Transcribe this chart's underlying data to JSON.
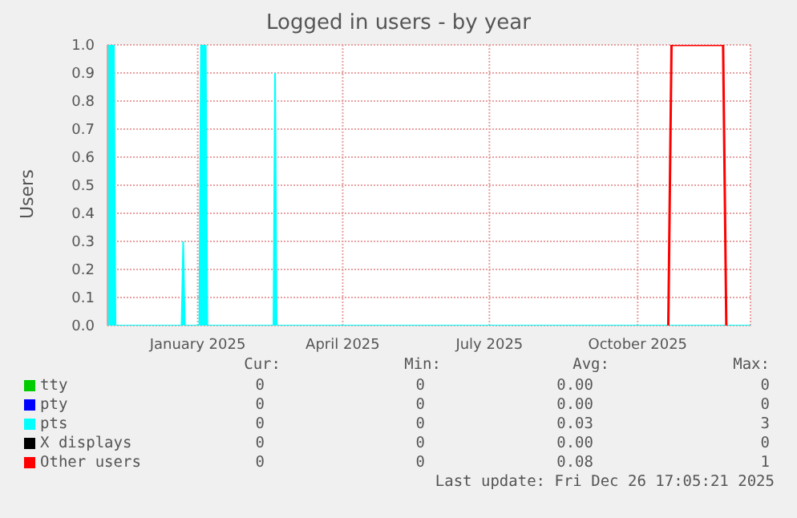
{
  "chart_data": {
    "type": "area",
    "title": "Logged in users - by year",
    "ylabel": "Users",
    "x": [
      "2024-11-06",
      "2024-11-10",
      "2024-11-11",
      "2024-12-22",
      "2024-12-23",
      "2024-12-24",
      "2025-01-02",
      "2025-01-03",
      "2025-01-06",
      "2025-01-07",
      "2025-02-17",
      "2025-02-18",
      "2025-02-19",
      "2025-10-20",
      "2025-10-22",
      "2025-11-23",
      "2025-11-25",
      "2025-12-10"
    ],
    "series": [
      {
        "name": "tty",
        "color": "#00cc00",
        "values": [
          null,
          null,
          null,
          null,
          null,
          null,
          null,
          null,
          null,
          null,
          null,
          null,
          null,
          null,
          null,
          null,
          null,
          null
        ]
      },
      {
        "name": "pty",
        "color": "#0000ff",
        "values": [
          null,
          null,
          null,
          null,
          null,
          null,
          null,
          null,
          null,
          null,
          null,
          null,
          null,
          null,
          null,
          null,
          null,
          null
        ]
      },
      {
        "name": "pts",
        "color": "#00ffff",
        "values": [
          1,
          1,
          0,
          0,
          0.3,
          0,
          0,
          1,
          1,
          0,
          0,
          0.9,
          0,
          0,
          0,
          0,
          0,
          0
        ]
      },
      {
        "name": "X displays",
        "color": "#000000",
        "values": [
          null,
          null,
          null,
          null,
          null,
          null,
          null,
          null,
          null,
          null,
          null,
          null,
          null,
          null,
          null,
          null,
          null,
          null
        ]
      },
      {
        "name": "Other users",
        "type": "line",
        "color": "#ff0000",
        "values": [
          null,
          null,
          null,
          null,
          null,
          null,
          null,
          null,
          null,
          null,
          null,
          null,
          null,
          0,
          1,
          1,
          0,
          null
        ]
      }
    ],
    "xlim": [
      "2024-11-06",
      "2025-12-10"
    ],
    "xticks": [
      {
        "value": "2025-01-01",
        "label": "January 2025"
      },
      {
        "value": "2025-04-01",
        "label": "April 2025"
      },
      {
        "value": "2025-07-01",
        "label": "July 2025"
      },
      {
        "value": "2025-10-01",
        "label": "October 2025"
      }
    ],
    "ylim": [
      0,
      1
    ],
    "yticks": [
      {
        "value": 0,
        "label": "0.0"
      },
      {
        "value": 0.1,
        "label": "0.1"
      },
      {
        "value": 0.2,
        "label": "0.2"
      },
      {
        "value": 0.3,
        "label": "0.3"
      },
      {
        "value": 0.4,
        "label": "0.4"
      },
      {
        "value": 0.5,
        "label": "0.5"
      },
      {
        "value": 0.6,
        "label": "0.6"
      },
      {
        "value": 0.7,
        "label": "0.7"
      },
      {
        "value": 0.8,
        "label": "0.8"
      },
      {
        "value": 0.9,
        "label": "0.9"
      },
      {
        "value": 1,
        "label": "1.0"
      }
    ],
    "grid": true,
    "legend": "bottom",
    "annotations": [
      "Cur:",
      "Min:",
      "Avg:",
      "Max:",
      "0",
      "0",
      "0.00",
      "0",
      "0",
      "0",
      "0.00",
      "0",
      "0",
      "0",
      "0.03",
      "3",
      "0",
      "0",
      "0.00",
      "0",
      "0",
      "0",
      "0.08",
      "1",
      "Last update: Fri Dec 26 17:05:21 2025"
    ]
  }
}
